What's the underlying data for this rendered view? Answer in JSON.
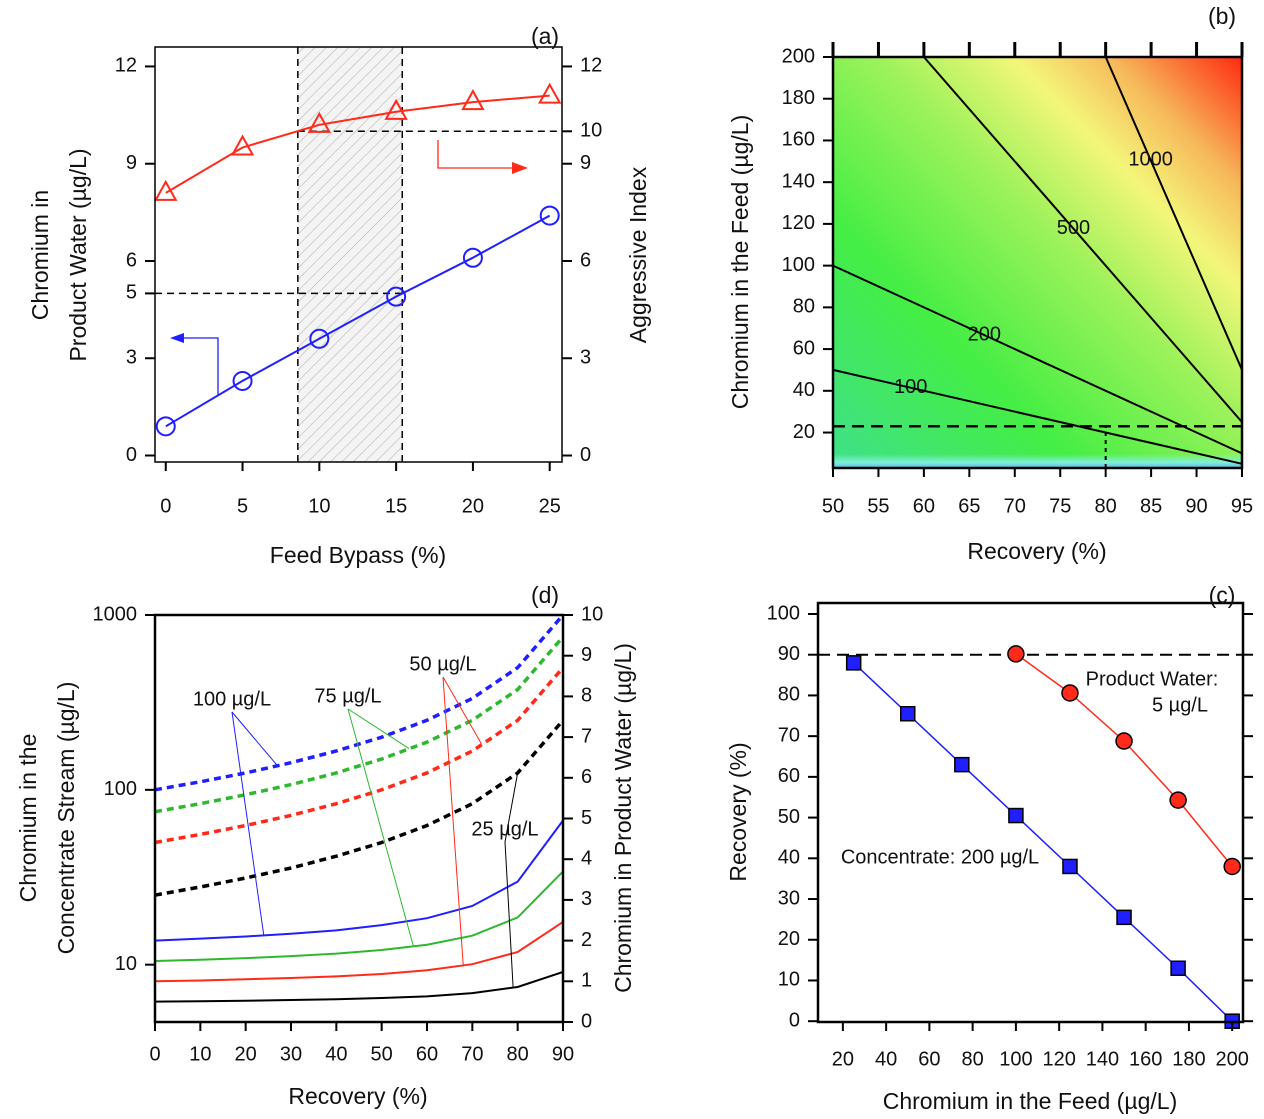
{
  "chart_data": [
    {
      "type": "line",
      "panel_label": "(a)",
      "x_label": "Feed Bypass  (%)",
      "y_label": [
        "Chromium in",
        "Product Water  (µg/L)"
      ],
      "y2_label": "Aggressive Index",
      "x": [
        0,
        5,
        10,
        15,
        20,
        25
      ],
      "xlim": [
        -0.7,
        25.8
      ],
      "xticks": [
        0,
        5,
        10,
        15,
        20,
        25
      ],
      "ylim": [
        -0.2,
        12.6
      ],
      "yticks": [
        0,
        3,
        5,
        6,
        9,
        12
      ],
      "y2lim": [
        -0.2,
        12.6
      ],
      "y2ticks": [
        0,
        3,
        6,
        9,
        10,
        12
      ],
      "series": [
        {
          "color": "#1f1fff",
          "marker": "circle",
          "values": [
            0.9,
            2.3,
            3.6,
            4.9,
            6.1,
            7.4
          ]
        },
        {
          "color": "#ff2a1a",
          "marker": "triangle",
          "axis": "y2",
          "values": [
            8.1,
            9.5,
            10.2,
            10.6,
            10.9,
            11.1
          ]
        }
      ],
      "bypass_range": [
        8.6,
        15.4
      ],
      "product_limit": 5,
      "index_limit": 10
    },
    {
      "type": "contour",
      "panel_label": "(b)",
      "x_label": "Recovery  (%)",
      "y_label": "Chromium in the Feed  (µg/L)",
      "xlim": [
        50,
        95
      ],
      "xticks": [
        50,
        55,
        60,
        65,
        70,
        75,
        80,
        85,
        90,
        95
      ],
      "ylim": [
        3,
        200
      ],
      "yticks": [
        20,
        40,
        60,
        80,
        100,
        120,
        140,
        160,
        180,
        200
      ],
      "contours": [
        {
          "level": 100,
          "x": [
            50,
            95
          ],
          "y": [
            50,
            5
          ]
        },
        {
          "level": 200,
          "x": [
            50,
            95
          ],
          "y": [
            100,
            10
          ]
        },
        {
          "level": 500,
          "x": [
            60,
            95
          ],
          "y": [
            200,
            25
          ]
        },
        {
          "level": 1000,
          "x": [
            80,
            95
          ],
          "y": [
            200,
            50
          ]
        }
      ],
      "ref_x": 80,
      "ref_y": 23
    },
    {
      "type": "line",
      "panel_label": "(d)",
      "x_label": "Recovery  (%)",
      "y_label": [
        "Chromium in the",
        "Concentrate Stream  (µg/L)"
      ],
      "y2_label": "Chromium in Product Water  (µg/L)",
      "log_y": true,
      "x": [
        0,
        10,
        20,
        30,
        40,
        50,
        60,
        70,
        80,
        90
      ],
      "xlim": [
        0,
        90
      ],
      "xticks": [
        0,
        10,
        20,
        30,
        40,
        50,
        60,
        70,
        80,
        90
      ],
      "ylim": [
        4.7,
        1000
      ],
      "yticks": [
        10,
        100,
        1000
      ],
      "y2lim": [
        0,
        10
      ],
      "y2ticks": [
        0,
        1,
        2,
        3,
        4,
        5,
        6,
        7,
        8,
        9,
        10
      ],
      "series": [
        {
          "name": "100 µg/L",
          "color": "#1f1fff",
          "concentrate": [
            100,
            111.1,
            125,
            142.9,
            166.7,
            200,
            250,
            333.3,
            500,
            1000
          ],
          "product": [
            2.0,
            2.05,
            2.1,
            2.17,
            2.25,
            2.38,
            2.55,
            2.85,
            3.45,
            4.95
          ]
        },
        {
          "name": "75 µg/L",
          "color": "#2db82d",
          "concentrate": [
            75,
            83.3,
            93.8,
            107.1,
            125,
            150,
            187.5,
            250,
            375,
            750
          ],
          "product": [
            1.5,
            1.53,
            1.57,
            1.62,
            1.68,
            1.77,
            1.9,
            2.12,
            2.57,
            3.7
          ]
        },
        {
          "name": "50 µg/L",
          "color": "#ff2a1a",
          "concentrate": [
            50,
            55.6,
            62.5,
            71.4,
            83.3,
            100,
            125,
            166.7,
            250,
            500
          ],
          "product": [
            1.0,
            1.02,
            1.05,
            1.08,
            1.12,
            1.18,
            1.27,
            1.42,
            1.72,
            2.46
          ]
        },
        {
          "name": "25 µg/L",
          "color": "#000000",
          "concentrate": [
            25,
            27.8,
            31.3,
            35.7,
            41.7,
            50,
            62.5,
            83.3,
            125,
            250
          ],
          "product": [
            0.5,
            0.51,
            0.52,
            0.54,
            0.56,
            0.59,
            0.63,
            0.71,
            0.86,
            1.23
          ]
        }
      ]
    },
    {
      "type": "scatter",
      "panel_label": "(c)",
      "x_label": "Chromium in the Feed  (µg/L)",
      "y_label": "Recovery  (%)",
      "xlim": [
        8.5,
        205
      ],
      "xticks": [
        20,
        40,
        60,
        80,
        100,
        120,
        140,
        160,
        180,
        200
      ],
      "ylim": [
        -0.2,
        102.7
      ],
      "yticks": [
        0,
        10,
        20,
        30,
        40,
        50,
        60,
        70,
        80,
        90,
        100
      ],
      "recovery_limit": 90,
      "series": [
        {
          "name": [
            "Concentrate: 200  µg/L"
          ],
          "color": "#1f1fff",
          "marker": "square",
          "x": [
            25,
            50,
            75,
            100,
            125,
            150,
            175,
            200
          ],
          "values": [
            88,
            75.5,
            63,
            50.5,
            38,
            25.5,
            13,
            0
          ]
        },
        {
          "name": [
            "Product Water:",
            "5 µg/L"
          ],
          "color": "#ff2a1a",
          "marker": "circle",
          "x": [
            100,
            125,
            150,
            175,
            200
          ],
          "values": [
            90.2,
            80.6,
            68.8,
            54.3,
            38
          ]
        }
      ]
    }
  ]
}
